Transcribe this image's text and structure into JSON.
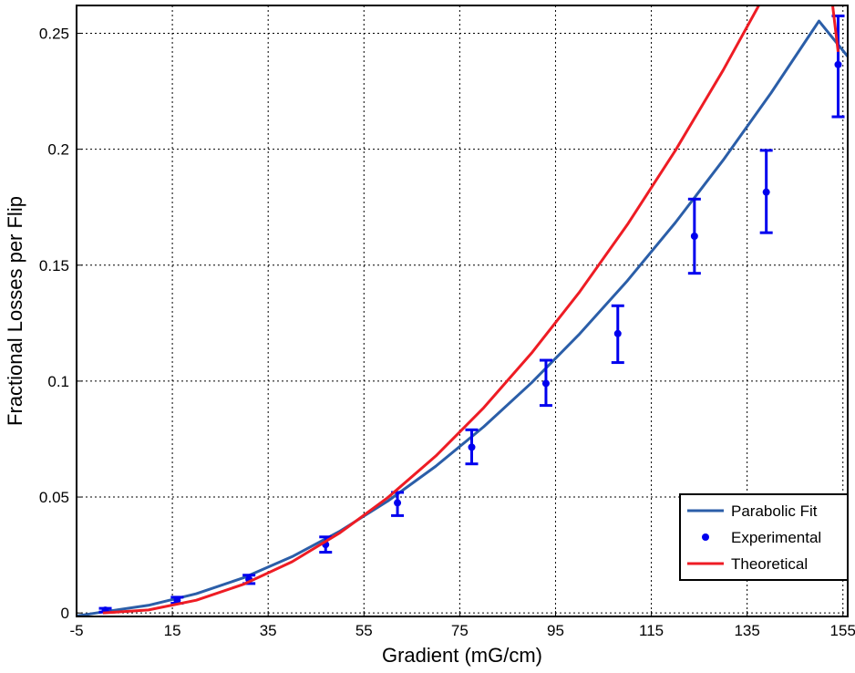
{
  "chart_data": {
    "type": "line",
    "xlabel": "Gradient (mG/cm)",
    "ylabel": "Fractional Losses per Flip",
    "xlim": [
      -5,
      156
    ],
    "ylim": [
      -0.0015,
      0.262
    ],
    "x_ticks": [
      -5,
      15,
      35,
      55,
      75,
      95,
      115,
      135,
      155
    ],
    "x_tick_labels": [
      "-5",
      "15",
      "35",
      "55",
      "75",
      "95",
      "115",
      "135",
      "155"
    ],
    "y_ticks": [
      0,
      0.05,
      0.1,
      0.15,
      0.2,
      0.25
    ],
    "y_tick_labels": [
      "0",
      "0.05",
      "0.1",
      "0.15",
      "0.2",
      "0.25"
    ],
    "grid": true,
    "legend_position": "bottom-right",
    "series": [
      {
        "name": "Parabolic Fit",
        "kind": "line",
        "color": "#2b5ea8",
        "x": [
          -5,
          0,
          10,
          20,
          30,
          40,
          50,
          60,
          70,
          80,
          90,
          100,
          110,
          120,
          130,
          140,
          150,
          156
        ],
        "y": [
          -0.0013,
          0.0003,
          0.0033,
          0.0083,
          0.0153,
          0.0243,
          0.0353,
          0.0483,
          0.0633,
          0.0803,
          0.0993,
          0.1203,
          0.1433,
          0.1683,
          0.1953,
          0.2243,
          0.2553,
          0.24
        ]
      },
      {
        "name": "Experimental",
        "kind": "errorbar",
        "color": "#0000ee",
        "x": [
          1,
          16,
          31,
          47,
          62,
          77.5,
          93,
          108,
          124,
          139,
          154
        ],
        "y": [
          0.0012,
          0.0055,
          0.0145,
          0.0295,
          0.0475,
          0.0715,
          0.099,
          0.1205,
          0.1625,
          0.1815,
          0.2365
        ],
        "err_low": [
          0.0008,
          0.0013,
          0.0018,
          0.0033,
          0.0055,
          0.0072,
          0.0095,
          0.0125,
          0.016,
          0.0175,
          0.0225
        ],
        "err_high": [
          0.0008,
          0.0013,
          0.0018,
          0.0033,
          0.0045,
          0.0075,
          0.01,
          0.012,
          0.016,
          0.018,
          0.021
        ]
      },
      {
        "name": "Theoretical",
        "kind": "line",
        "color": "#ee1c24",
        "x": [
          0.5,
          10,
          20,
          30,
          40,
          50,
          60,
          70,
          80,
          90,
          100,
          110,
          120,
          130,
          140,
          150,
          154
        ],
        "y": [
          0.0,
          0.0013,
          0.0055,
          0.0125,
          0.0221,
          0.0346,
          0.0498,
          0.0677,
          0.0885,
          0.1121,
          0.1384,
          0.1675,
          0.1994,
          0.2341,
          0.2716,
          0.3119,
          0.242
        ]
      }
    ]
  }
}
